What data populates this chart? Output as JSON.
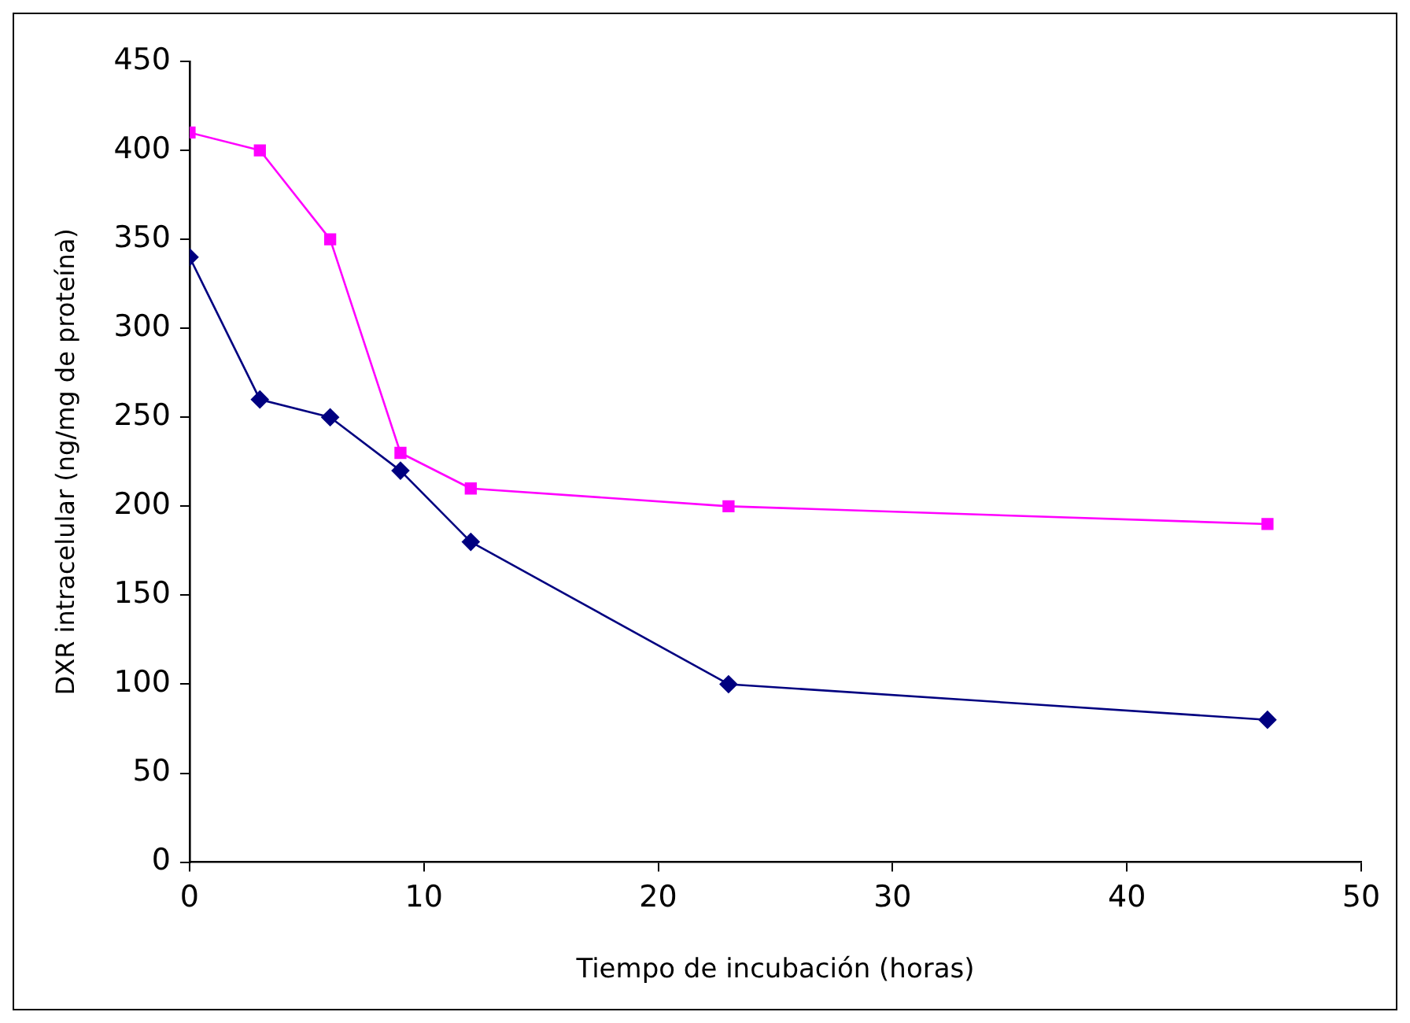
{
  "chart_data": {
    "type": "line",
    "xlabel": "Tiempo de incubación (horas)",
    "ylabel": "DXR intracelular (ng/mg de proteína)",
    "x": [
      0,
      3,
      6,
      9,
      12,
      23,
      46
    ],
    "series": [
      {
        "color": "#ff00ff",
        "marker": "square",
        "values": [
          410,
          400,
          350,
          230,
          210,
          200,
          190
        ]
      },
      {
        "color": "#000080",
        "marker": "diamond",
        "values": [
          340,
          260,
          250,
          220,
          180,
          100,
          80
        ]
      }
    ],
    "xlim": [
      0,
      50
    ],
    "xticks": [
      0,
      10,
      20,
      30,
      40,
      50
    ],
    "ylim": [
      0,
      450
    ],
    "yticks": [
      0,
      50,
      100,
      150,
      200,
      250,
      300,
      350,
      400,
      450
    ],
    "grid": false,
    "legend": false,
    "line_style": "solid"
  }
}
